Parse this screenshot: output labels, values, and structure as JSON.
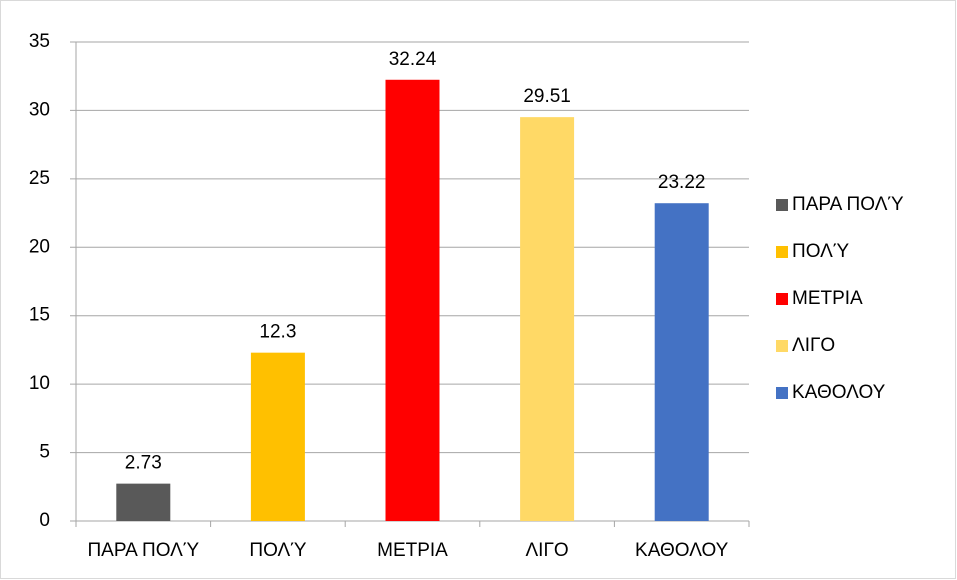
{
  "chart_data": {
    "type": "bar",
    "categories": [
      "ΠΑΡΑ ΠΟΛΎ",
      "ΠΟΛΎ",
      "ΜΕΤΡΙΑ",
      "ΛΙΓΟ",
      "ΚΑΘΟΛΟΥ"
    ],
    "values": [
      2.73,
      12.3,
      32.24,
      29.51,
      23.22
    ],
    "colors": [
      "#595959",
      "#ffc000",
      "#ff0000",
      "#ffd966",
      "#4472c4"
    ],
    "ylim": [
      0,
      35
    ],
    "yticks": [
      0,
      5,
      10,
      15,
      20,
      25,
      30,
      35
    ],
    "grid": true,
    "legend": "right"
  }
}
